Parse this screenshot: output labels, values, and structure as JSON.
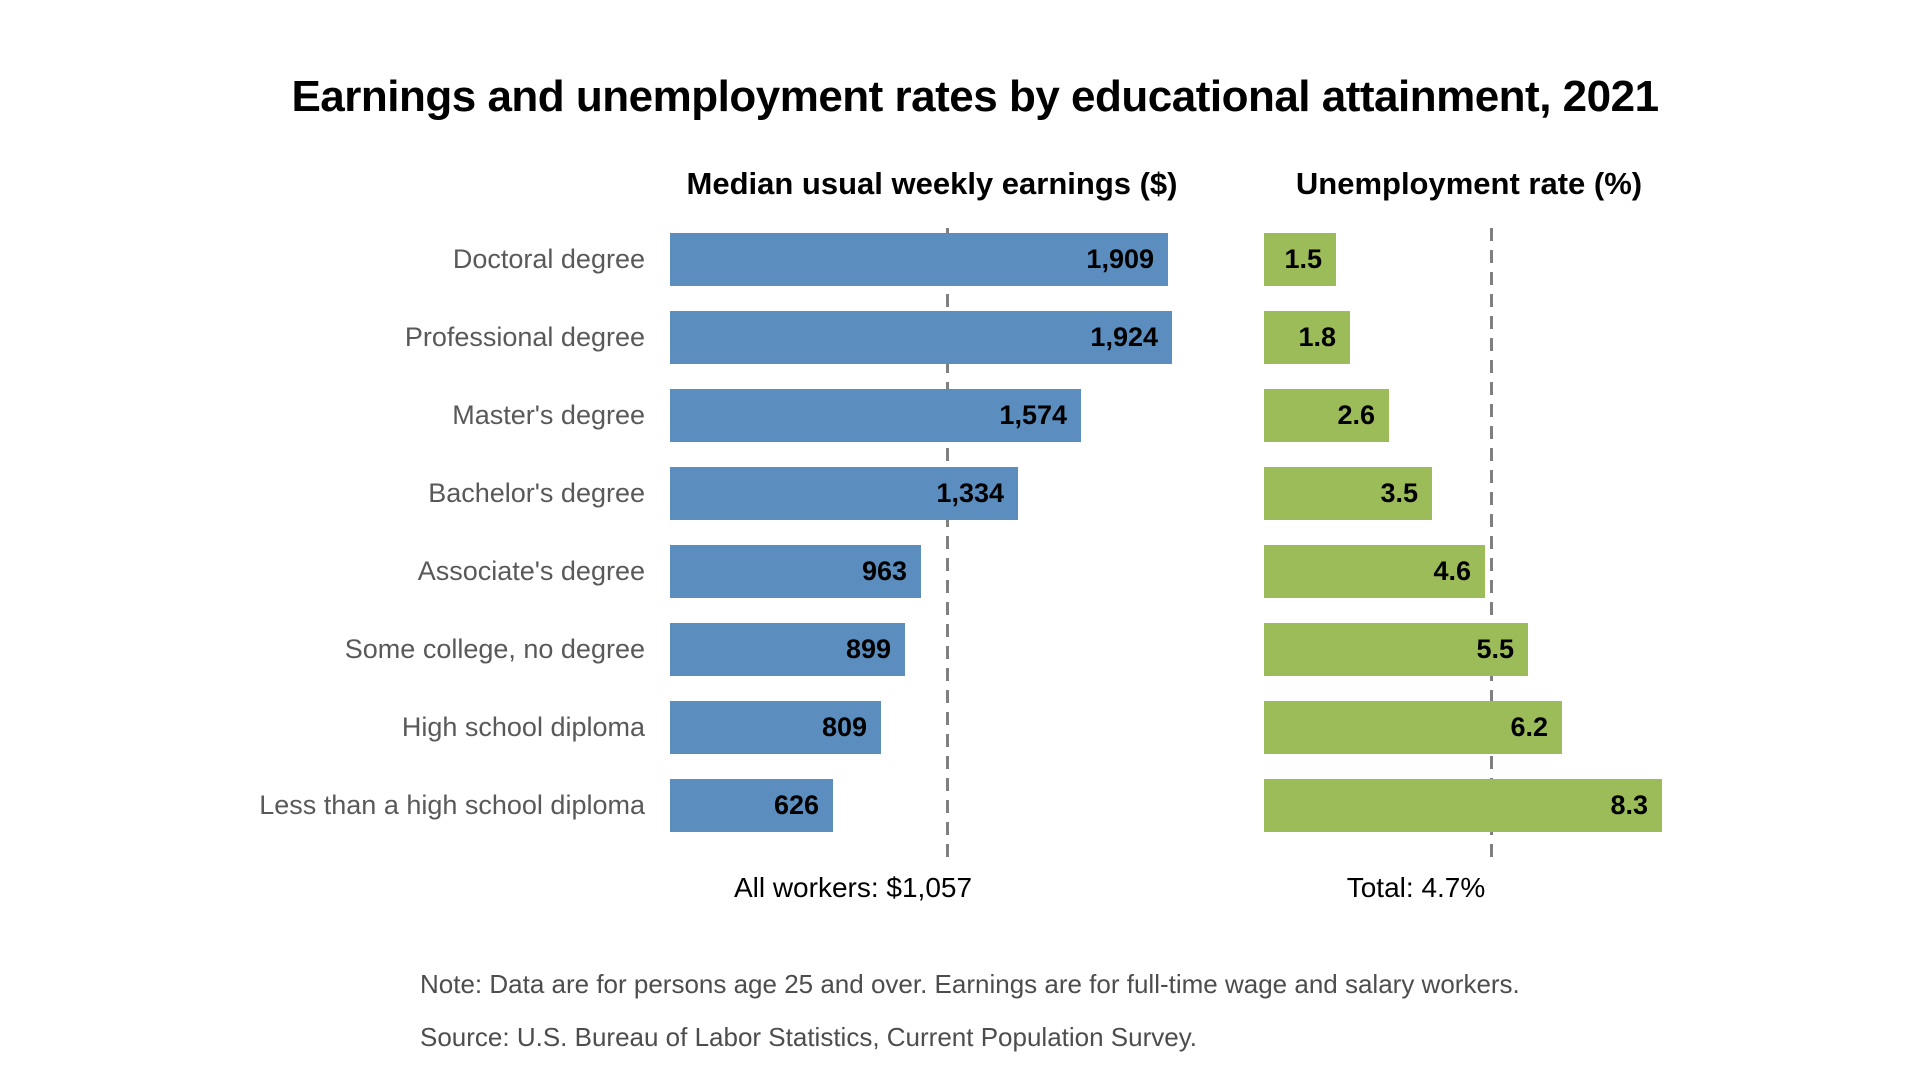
{
  "page": {
    "title": "Earnings and unemployment rates by educational attainment, 2021",
    "note": "Note: Data are for persons age 25 and over. Earnings are for full-time wage and salary workers.",
    "source": "Source: U.S. Bureau of Labor Statistics, Current Population Survey."
  },
  "colors": {
    "earnings_bar": "#5b8dbe",
    "unemployment_bar": "#9cbb59",
    "category_label": "#595959",
    "reference_line": "#808080",
    "value_label": "#000000"
  },
  "chart_data": [
    {
      "type": "bar",
      "orientation": "horizontal",
      "title": "Median usual weekly earnings ($)",
      "categories": [
        "Doctoral degree",
        "Professional degree",
        "Master's degree",
        "Bachelor's degree",
        "Associate's degree",
        "Some college, no degree",
        "High school diploma",
        "Less than a high school diploma"
      ],
      "values": [
        1909,
        1924,
        1574,
        1334,
        963,
        899,
        809,
        626
      ],
      "value_labels": [
        "1,909",
        "1,924",
        "1,574",
        "1,334",
        "963",
        "899",
        "809",
        "626"
      ],
      "xlim": [
        0,
        2000
      ],
      "grid": false,
      "reference_line": {
        "value": 1057,
        "label": "All workers: $1,057"
      }
    },
    {
      "type": "bar",
      "orientation": "horizontal",
      "title": "Unemployment rate (%)",
      "categories": [
        "Doctoral degree",
        "Professional degree",
        "Master's degree",
        "Bachelor's degree",
        "Associate's degree",
        "Some college, no degree",
        "High school diploma",
        "Less than a high school diploma"
      ],
      "values": [
        1.5,
        1.8,
        2.6,
        3.5,
        4.6,
        5.5,
        6.2,
        8.3
      ],
      "value_labels": [
        "1.5",
        "1.8",
        "2.6",
        "3.5",
        "4.6",
        "5.5",
        "6.2",
        "8.3"
      ],
      "xlim": [
        0,
        9
      ],
      "grid": false,
      "reference_line": {
        "value": 4.7,
        "label": "Total: 4.7%"
      }
    }
  ]
}
